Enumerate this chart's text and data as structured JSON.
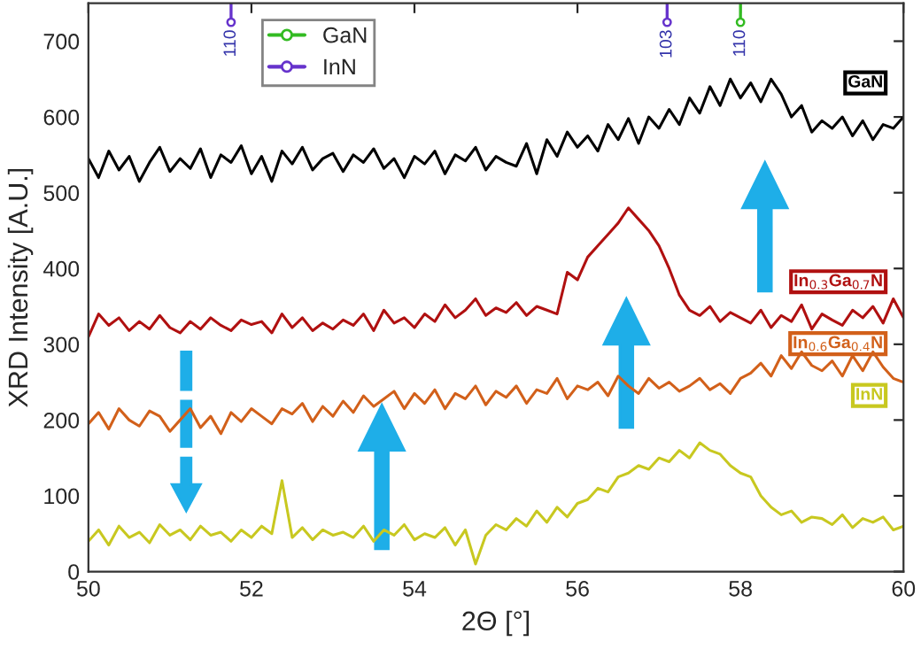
{
  "chart_data": {
    "type": "line",
    "xlabel": "2Θ [°]",
    "ylabel": "XRD Intensity [A.U.]",
    "x": [
      50,
      50.125,
      50.25,
      50.375,
      50.5,
      50.625,
      50.75,
      50.875,
      51,
      51.125,
      51.25,
      51.375,
      51.5,
      51.625,
      51.75,
      51.875,
      52,
      52.125,
      52.25,
      52.375,
      52.5,
      52.625,
      52.75,
      52.875,
      53,
      53.125,
      53.25,
      53.375,
      53.5,
      53.625,
      53.75,
      53.875,
      54,
      54.125,
      54.25,
      54.375,
      54.5,
      54.625,
      54.75,
      54.875,
      55,
      55.125,
      55.25,
      55.375,
      55.5,
      55.625,
      55.75,
      55.875,
      56,
      56.125,
      56.25,
      56.375,
      56.5,
      56.625,
      56.75,
      56.875,
      57,
      57.125,
      57.25,
      57.375,
      57.5,
      57.625,
      57.75,
      57.875,
      58,
      58.125,
      58.25,
      58.375,
      58.5,
      58.625,
      58.75,
      58.875,
      59,
      59.125,
      59.25,
      59.375,
      59.5,
      59.625,
      59.75,
      59.875,
      60
    ],
    "xlim": [
      50,
      60
    ],
    "xticks": [
      50,
      52,
      54,
      56,
      58,
      60
    ],
    "ylim": [
      0,
      750
    ],
    "yticks": [
      0,
      100,
      200,
      300,
      400,
      500,
      600,
      700
    ],
    "grid": false,
    "legend": "top left",
    "annotations": [
      {
        "text": "110",
        "x": 51.75,
        "y": 725
      },
      {
        "text": "103",
        "x": 57.1,
        "y": 725
      },
      {
        "text": "110",
        "x": 58.0,
        "y": 725
      }
    ],
    "series": [
      {
        "name": "GaN",
        "color": "#000000",
        "values": [
          545,
          520,
          555,
          530,
          548,
          515,
          540,
          560,
          528,
          545,
          532,
          558,
          520,
          550,
          540,
          562,
          525,
          548,
          515,
          555,
          538,
          560,
          530,
          545,
          552,
          528,
          550,
          540,
          558,
          532,
          545,
          520,
          548,
          538,
          555,
          525,
          550,
          542,
          560,
          530,
          548,
          540,
          535,
          565,
          525,
          570,
          548,
          580,
          560,
          575,
          555,
          590,
          570,
          598,
          565,
          600,
          585,
          610,
          590,
          625,
          605,
          640,
          615,
          650,
          625,
          645,
          620,
          650,
          630,
          600,
          615,
          580,
          595,
          585,
          600,
          575,
          595,
          570,
          590,
          585,
          600
        ]
      },
      {
        "name": "In$_{0.3}$Ga$_{0.7}$N",
        "color": "#b01010",
        "values": [
          310,
          340,
          325,
          335,
          318,
          330,
          320,
          338,
          322,
          315,
          330,
          320,
          335,
          325,
          318,
          332,
          326,
          330,
          315,
          340,
          322,
          335,
          318,
          328,
          320,
          332,
          325,
          340,
          318,
          345,
          328,
          335,
          322,
          340,
          330,
          352,
          335,
          345,
          360,
          338,
          348,
          342,
          355,
          338,
          350,
          345,
          340,
          395,
          385,
          415,
          430,
          445,
          460,
          480,
          465,
          450,
          430,
          400,
          365,
          345,
          338,
          350,
          330,
          342,
          335,
          328,
          345,
          322,
          338,
          330,
          352,
          320,
          340,
          332,
          325,
          345,
          335,
          350,
          328,
          360,
          335
        ]
      },
      {
        "name": "In$_{0.6}$Ga$_{0.4}$N",
        "color": "#d2601a",
        "values": [
          195,
          210,
          188,
          215,
          200,
          192,
          212,
          205,
          185,
          200,
          215,
          190,
          205,
          182,
          210,
          198,
          215,
          205,
          195,
          215,
          208,
          222,
          198,
          218,
          205,
          225,
          210,
          232,
          218,
          228,
          238,
          215,
          235,
          222,
          240,
          215,
          235,
          228,
          245,
          220,
          238,
          230,
          245,
          222,
          240,
          235,
          255,
          228,
          245,
          240,
          250,
          232,
          258,
          245,
          235,
          255,
          242,
          250,
          238,
          245,
          255,
          240,
          248,
          235,
          255,
          262,
          275,
          258,
          285,
          268,
          290,
          272,
          265,
          278,
          258,
          285,
          265,
          290,
          270,
          255,
          250
        ]
      },
      {
        "name": "InN",
        "color": "#c8c820",
        "values": [
          40,
          55,
          35,
          60,
          45,
          52,
          38,
          62,
          48,
          55,
          42,
          60,
          48,
          52,
          40,
          55,
          45,
          60,
          50,
          120,
          45,
          58,
          42,
          55,
          48,
          52,
          45,
          60,
          40,
          55,
          48,
          62,
          42,
          50,
          45,
          58,
          35,
          55,
          10,
          48,
          62,
          55,
          70,
          60,
          80,
          65,
          85,
          72,
          90,
          95,
          110,
          105,
          125,
          130,
          140,
          135,
          150,
          145,
          160,
          150,
          170,
          160,
          155,
          140,
          130,
          125,
          100,
          85,
          75,
          80,
          65,
          72,
          70,
          62,
          75,
          58,
          70,
          65,
          72,
          55,
          60
        ]
      },
      {
        "name": "GaN",
        "type": "lollipop",
        "color": "#33bb22",
        "x": [
          58.0
        ],
        "values": [
          725
        ]
      },
      {
        "name": "InN",
        "type": "lollipop",
        "color": "#6633cc",
        "x": [
          51.75,
          57.1
        ],
        "values": [
          725,
          725
        ]
      }
    ]
  }
}
